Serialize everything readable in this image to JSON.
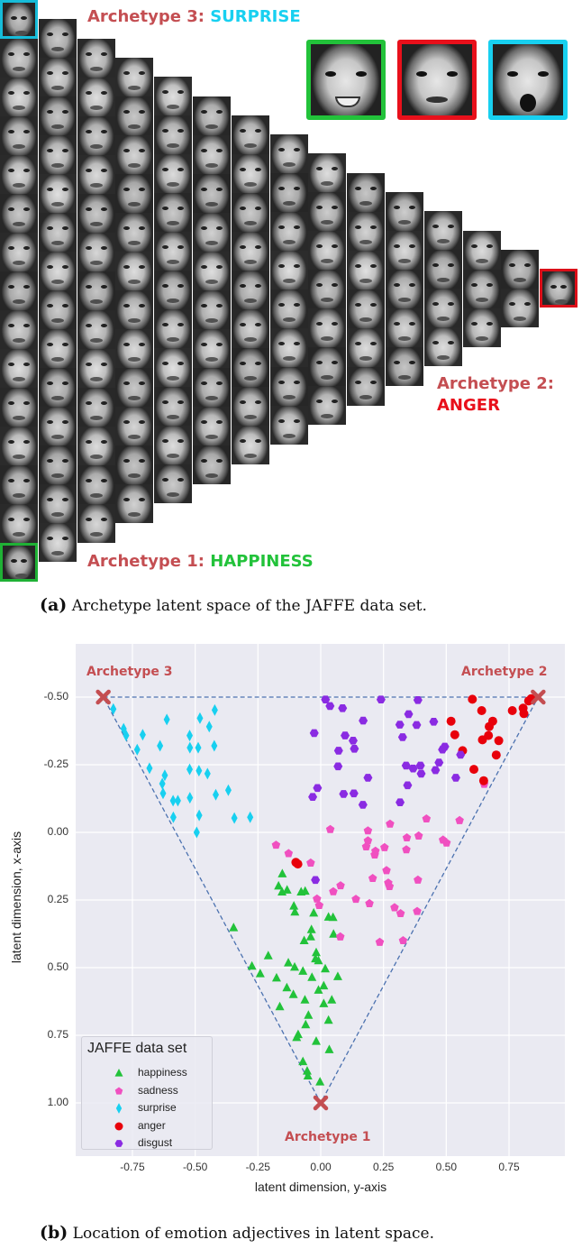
{
  "panel_a": {
    "archetype3_prefix": "Archetype 3: ",
    "archetype3_emotion": "SURPRISE",
    "archetype2_prefix": "Archetype 2:",
    "archetype2_emotion": "ANGER",
    "archetype1_prefix": "Archetype 1: ",
    "archetype1_emotion": "HAPPINESS",
    "caption_label": "(a)",
    "caption_text": " Archetype latent space of the JAFFE data set.",
    "colors": {
      "happiness": "#22c23a",
      "anger": "#e8101b",
      "surprise": "#18d0f0",
      "label": "#c44e52"
    }
  },
  "panel_b": {
    "caption_label": "(b)",
    "caption_text": " Location of emotion adjectives in latent space."
  },
  "chart_data": {
    "type": "scatter",
    "xlabel": "latent dimension, y-axis",
    "ylabel": "latent dimension, x-axis",
    "xlim": [
      -0.97,
      0.98
    ],
    "ylim": [
      1.2,
      -0.7
    ],
    "y_inverted": true,
    "grid": true,
    "background": "#eaeaf2",
    "x_ticks": [
      "-0.75",
      "-0.50",
      "-0.25",
      "0.00",
      "0.25",
      "0.50",
      "0.75"
    ],
    "y_ticks": [
      "-0.50",
      "-0.25",
      "0.00",
      "0.25",
      "0.50",
      "0.75",
      "1.00"
    ],
    "legend": {
      "title": "JAFFE data set",
      "placement": "lower-left"
    },
    "archetypes": [
      {
        "label": "Archetype 1",
        "x": 0.0,
        "y": 1.0
      },
      {
        "label": "Archetype 2",
        "x": 0.866,
        "y": -0.5
      },
      {
        "label": "Archetype 3",
        "x": -0.866,
        "y": -0.5
      }
    ],
    "archetype_color": "#c44e52",
    "simplex_line_color": "#4c72b0",
    "series": [
      {
        "name": "happiness",
        "marker": "triangle",
        "color": "#22c23a",
        "points": [
          [
            -0.153,
            0.153
          ],
          [
            -0.168,
            0.198
          ],
          [
            -0.154,
            0.22
          ],
          [
            -0.134,
            0.213
          ],
          [
            -0.078,
            0.22
          ],
          [
            -0.062,
            0.217
          ],
          [
            -0.107,
            0.272
          ],
          [
            -0.103,
            0.294
          ],
          [
            -0.028,
            0.298
          ],
          [
            0.031,
            0.313
          ],
          [
            0.049,
            0.314
          ],
          [
            -0.037,
            0.359
          ],
          [
            -0.04,
            0.386
          ],
          [
            -0.066,
            0.4
          ],
          [
            0.051,
            0.376
          ],
          [
            -0.347,
            0.352
          ],
          [
            -0.209,
            0.456
          ],
          [
            -0.274,
            0.494
          ],
          [
            -0.241,
            0.522
          ],
          [
            -0.176,
            0.538
          ],
          [
            -0.129,
            0.482
          ],
          [
            -0.104,
            0.498
          ],
          [
            -0.071,
            0.513
          ],
          [
            -0.035,
            0.536
          ],
          [
            -0.018,
            0.444
          ],
          [
            -0.021,
            0.467
          ],
          [
            -0.009,
            0.474
          ],
          [
            0.018,
            0.504
          ],
          [
            0.068,
            0.533
          ],
          [
            -0.135,
            0.574
          ],
          [
            -0.109,
            0.599
          ],
          [
            -0.063,
            0.619
          ],
          [
            -0.009,
            0.583
          ],
          [
            0.012,
            0.567
          ],
          [
            0.012,
            0.633
          ],
          [
            0.044,
            0.619
          ],
          [
            -0.163,
            0.644
          ],
          [
            -0.049,
            0.676
          ],
          [
            -0.06,
            0.711
          ],
          [
            0.031,
            0.694
          ],
          [
            -0.09,
            0.747
          ],
          [
            -0.096,
            0.758
          ],
          [
            -0.018,
            0.772
          ],
          [
            0.034,
            0.803
          ],
          [
            -0.071,
            0.847
          ],
          [
            -0.054,
            0.882
          ],
          [
            -0.051,
            0.9
          ],
          [
            -0.003,
            0.922
          ]
        ]
      },
      {
        "name": "sadness",
        "marker": "pentagon",
        "color": "#f050c0",
        "points": [
          [
            0.651,
            -0.178
          ],
          [
            0.553,
            -0.044
          ],
          [
            0.421,
            -0.05
          ],
          [
            0.276,
            -0.031
          ],
          [
            0.188,
            -0.006
          ],
          [
            0.038,
            -0.011
          ],
          [
            0.39,
            0.013
          ],
          [
            0.343,
            0.02
          ],
          [
            0.487,
            0.028
          ],
          [
            0.501,
            0.039
          ],
          [
            0.188,
            0.031
          ],
          [
            0.181,
            0.053
          ],
          [
            0.254,
            0.056
          ],
          [
            0.218,
            0.069
          ],
          [
            0.215,
            0.083
          ],
          [
            0.341,
            0.064
          ],
          [
            -0.178,
            0.047
          ],
          [
            -0.128,
            0.078
          ],
          [
            -0.04,
            0.113
          ],
          [
            0.262,
            0.141
          ],
          [
            0.207,
            0.17
          ],
          [
            0.387,
            0.176
          ],
          [
            0.079,
            0.197
          ],
          [
            0.269,
            0.187
          ],
          [
            0.274,
            0.2
          ],
          [
            0.05,
            0.219
          ],
          [
            -0.015,
            0.246
          ],
          [
            -0.006,
            0.27
          ],
          [
            0.14,
            0.247
          ],
          [
            0.194,
            0.263
          ],
          [
            0.294,
            0.278
          ],
          [
            0.318,
            0.3
          ],
          [
            0.384,
            0.292
          ],
          [
            0.078,
            0.386
          ],
          [
            0.235,
            0.406
          ],
          [
            0.328,
            0.4
          ]
        ]
      },
      {
        "name": "surprise",
        "marker": "diamond",
        "color": "#18d0f0",
        "points": [
          [
            -0.826,
            -0.456
          ],
          [
            -0.613,
            -0.417
          ],
          [
            -0.481,
            -0.422
          ],
          [
            -0.422,
            -0.452
          ],
          [
            -0.444,
            -0.391
          ],
          [
            -0.785,
            -0.383
          ],
          [
            -0.775,
            -0.358
          ],
          [
            -0.709,
            -0.361
          ],
          [
            -0.522,
            -0.358
          ],
          [
            -0.731,
            -0.306
          ],
          [
            -0.64,
            -0.32
          ],
          [
            -0.521,
            -0.313
          ],
          [
            -0.488,
            -0.313
          ],
          [
            -0.424,
            -0.32
          ],
          [
            -0.682,
            -0.237
          ],
          [
            -0.621,
            -0.211
          ],
          [
            -0.631,
            -0.18
          ],
          [
            -0.522,
            -0.233
          ],
          [
            -0.485,
            -0.228
          ],
          [
            -0.451,
            -0.217
          ],
          [
            -0.628,
            -0.144
          ],
          [
            -0.588,
            -0.117
          ],
          [
            -0.569,
            -0.117
          ],
          [
            -0.521,
            -0.128
          ],
          [
            -0.418,
            -0.139
          ],
          [
            -0.368,
            -0.156
          ],
          [
            -0.587,
            -0.056
          ],
          [
            -0.484,
            -0.063
          ],
          [
            -0.344,
            -0.053
          ],
          [
            -0.281,
            -0.056
          ],
          [
            -0.494,
            0.0
          ]
        ]
      },
      {
        "name": "anger",
        "marker": "circle",
        "color": "#e8000b",
        "points": [
          [
            0.604,
            -0.492
          ],
          [
            0.641,
            -0.45
          ],
          [
            0.519,
            -0.411
          ],
          [
            0.685,
            -0.411
          ],
          [
            0.671,
            -0.391
          ],
          [
            0.534,
            -0.361
          ],
          [
            0.668,
            -0.358
          ],
          [
            0.644,
            -0.342
          ],
          [
            0.709,
            -0.339
          ],
          [
            0.763,
            -0.45
          ],
          [
            0.806,
            -0.459
          ],
          [
            0.809,
            -0.439
          ],
          [
            0.828,
            -0.486
          ],
          [
            0.838,
            -0.494
          ],
          [
            0.565,
            -0.302
          ],
          [
            0.699,
            -0.286
          ],
          [
            0.61,
            -0.233
          ],
          [
            0.649,
            -0.191
          ],
          [
            -0.099,
            0.111
          ],
          [
            -0.091,
            0.117
          ]
        ]
      },
      {
        "name": "disgust",
        "marker": "hexagon",
        "color": "#8a2be2",
        "points": [
          [
            0.019,
            -0.491
          ],
          [
            0.037,
            -0.467
          ],
          [
            0.087,
            -0.459
          ],
          [
            0.24,
            -0.491
          ],
          [
            0.387,
            -0.489
          ],
          [
            0.35,
            -0.437
          ],
          [
            0.169,
            -0.413
          ],
          [
            0.315,
            -0.398
          ],
          [
            0.382,
            -0.397
          ],
          [
            0.45,
            -0.409
          ],
          [
            -0.026,
            -0.367
          ],
          [
            0.097,
            -0.358
          ],
          [
            0.129,
            -0.339
          ],
          [
            0.326,
            -0.352
          ],
          [
            0.071,
            -0.302
          ],
          [
            0.134,
            -0.309
          ],
          [
            0.485,
            -0.306
          ],
          [
            0.494,
            -0.317
          ],
          [
            0.557,
            -0.287
          ],
          [
            0.069,
            -0.244
          ],
          [
            0.34,
            -0.247
          ],
          [
            0.368,
            -0.236
          ],
          [
            0.397,
            -0.247
          ],
          [
            0.4,
            -0.217
          ],
          [
            0.457,
            -0.23
          ],
          [
            0.471,
            -0.258
          ],
          [
            0.188,
            -0.202
          ],
          [
            0.346,
            -0.174
          ],
          [
            -0.013,
            -0.164
          ],
          [
            -0.032,
            -0.131
          ],
          [
            0.091,
            -0.142
          ],
          [
            0.132,
            -0.144
          ],
          [
            0.168,
            -0.102
          ],
          [
            0.316,
            -0.111
          ],
          [
            0.538,
            -0.202
          ],
          [
            -0.021,
            0.176
          ]
        ]
      }
    ]
  }
}
